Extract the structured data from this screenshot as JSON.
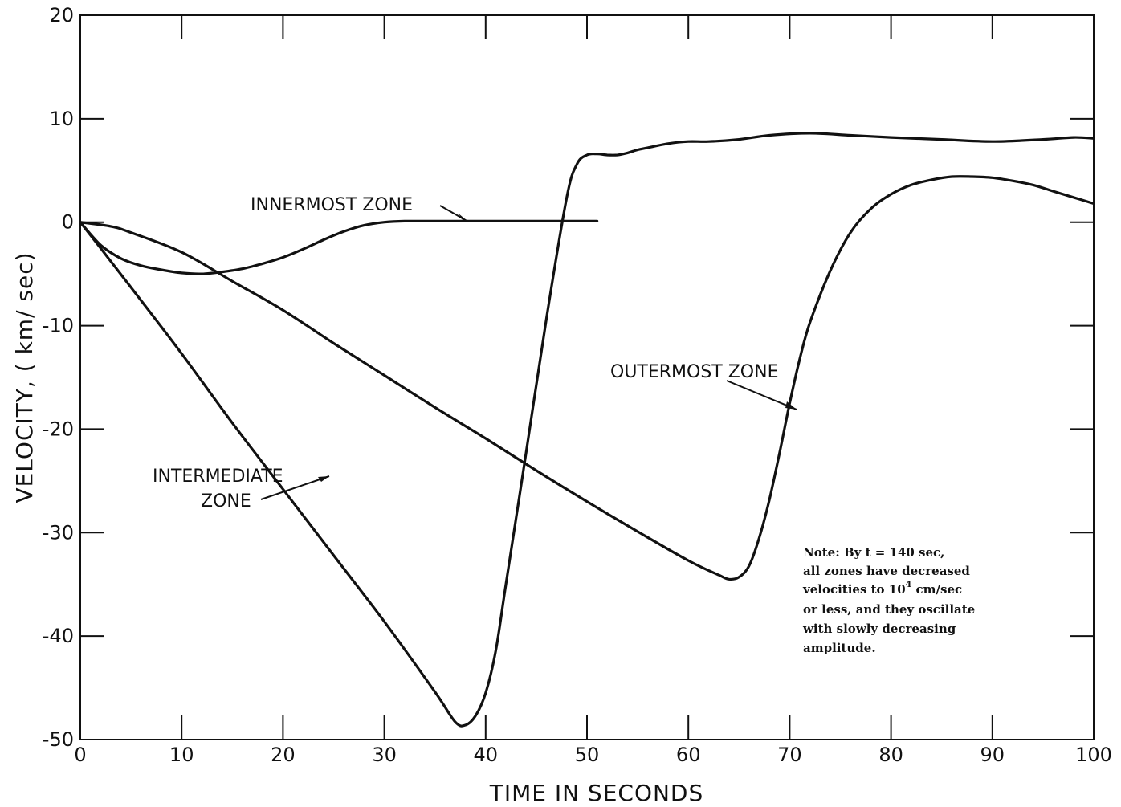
{
  "chart_data": {
    "type": "line",
    "title": "",
    "xlabel": "TIME IN SECONDS",
    "ylabel": "VELOCITY, ( km/ sec)",
    "xlim": [
      0,
      100
    ],
    "ylim": [
      -50,
      20
    ],
    "x_ticks": [
      "0",
      "10",
      "20",
      "30",
      "40",
      "50",
      "60",
      "70",
      "80",
      "90",
      "100"
    ],
    "y_ticks": [
      "20",
      "10",
      "0",
      "-10",
      "-20",
      "-30",
      "-40",
      "-50"
    ],
    "grid": false,
    "series": [
      {
        "name": "INNERMOST ZONE",
        "x": [
          0,
          2,
          4,
          6,
          8,
          10,
          12,
          14,
          16,
          18,
          20,
          22,
          24,
          26,
          28,
          30,
          32,
          34,
          36,
          40,
          45,
          51
        ],
        "y": [
          0,
          -2.2,
          -3.5,
          -4.2,
          -4.6,
          -4.9,
          -5.0,
          -4.8,
          -4.5,
          -4.0,
          -3.4,
          -2.6,
          -1.7,
          -0.9,
          -0.3,
          0.0,
          0.1,
          0.1,
          0.1,
          0.1,
          0.1,
          0.1
        ]
      },
      {
        "name": "INTERMEDIATE ZONE",
        "x": [
          0,
          2,
          5,
          10,
          15,
          20,
          25,
          30,
          35,
          37,
          38,
          39,
          40,
          41,
          42,
          44,
          46,
          48,
          49,
          50,
          51,
          52,
          53,
          54,
          55,
          56,
          58,
          60,
          62,
          65,
          68,
          72,
          76,
          80,
          85,
          90,
          95,
          98,
          100
        ],
        "y": [
          0,
          -2.5,
          -6.3,
          -12.7,
          -19.4,
          -25.8,
          -32.2,
          -38.6,
          -45.4,
          -48.3,
          -48.6,
          -47.7,
          -45.5,
          -41.4,
          -35.0,
          -22.2,
          -9.3,
          2.4,
          5.6,
          6.5,
          6.6,
          6.5,
          6.5,
          6.7,
          7.0,
          7.2,
          7.6,
          7.8,
          7.8,
          8.0,
          8.4,
          8.6,
          8.4,
          8.2,
          8.0,
          7.8,
          8.0,
          8.2,
          8.1
        ]
      },
      {
        "name": "OUTERMOST ZONE",
        "x": [
          0,
          3,
          5,
          10,
          15,
          20,
          25,
          30,
          35,
          40,
          45,
          50,
          55,
          60,
          63,
          64,
          65,
          66,
          67,
          68,
          69,
          70,
          71,
          72,
          74,
          76,
          78,
          80,
          82,
          84,
          86,
          88,
          90,
          92,
          94,
          96,
          98,
          100
        ],
        "y": [
          0,
          -0.4,
          -1.0,
          -2.9,
          -5.7,
          -8.5,
          -11.7,
          -14.8,
          -17.9,
          -20.9,
          -24.0,
          -27.0,
          -29.9,
          -32.7,
          -34.1,
          -34.5,
          -34.3,
          -33.2,
          -30.5,
          -26.8,
          -22.3,
          -17.5,
          -13.2,
          -9.7,
          -4.7,
          -1.0,
          1.3,
          2.7,
          3.6,
          4.1,
          4.4,
          4.4,
          4.3,
          4.0,
          3.6,
          3.0,
          2.4,
          1.8
        ]
      }
    ],
    "annotations": {
      "innermost": "INNERMOST ZONE",
      "intermediate_line1": "INTERMEDIATE",
      "intermediate_line2": "ZONE",
      "outermost": "OUTERMOST ZONE"
    },
    "note": {
      "line1": "Note:  By t = 140 sec,",
      "line2": "all zones have decreased",
      "line3_pre": "velocities to 10",
      "line3_sup": "4",
      "line3_post": " cm/sec",
      "line4": "or less, and they oscillate",
      "line5": "with slowly decreasing",
      "line6": "amplitude."
    }
  }
}
